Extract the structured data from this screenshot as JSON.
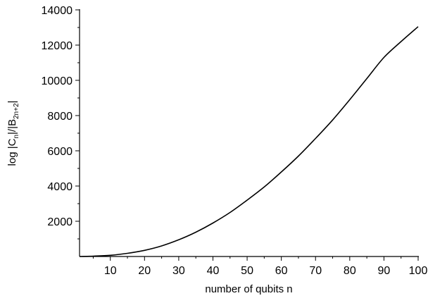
{
  "chart_data": {
    "type": "line",
    "title": "",
    "xlabel": "number of qubits n",
    "ylabel_parts": {
      "prefix": "log |C",
      "sub1": "n",
      "mid": "|/|B",
      "sub2": "2n+2",
      "suffix": "|"
    },
    "xlim": [
      1,
      100
    ],
    "ylim": [
      0,
      14000
    ],
    "x_ticks": [
      10,
      20,
      30,
      40,
      50,
      60,
      70,
      80,
      90,
      100
    ],
    "y_ticks": [
      2000,
      4000,
      6000,
      8000,
      10000,
      12000,
      14000
    ],
    "grid": false,
    "legend": "none",
    "series": [
      {
        "x": [
          1,
          5,
          10,
          15,
          20,
          25,
          30,
          35,
          40,
          45,
          50,
          55,
          60,
          65,
          70,
          75,
          80,
          85,
          90,
          95,
          100
        ],
        "y": [
          0,
          20,
          70,
          180,
          350,
          600,
          950,
          1380,
          1900,
          2500,
          3200,
          3950,
          4800,
          5700,
          6700,
          7750,
          8900,
          10100,
          11300,
          12200,
          13050
        ],
        "color": "#000000"
      }
    ]
  }
}
